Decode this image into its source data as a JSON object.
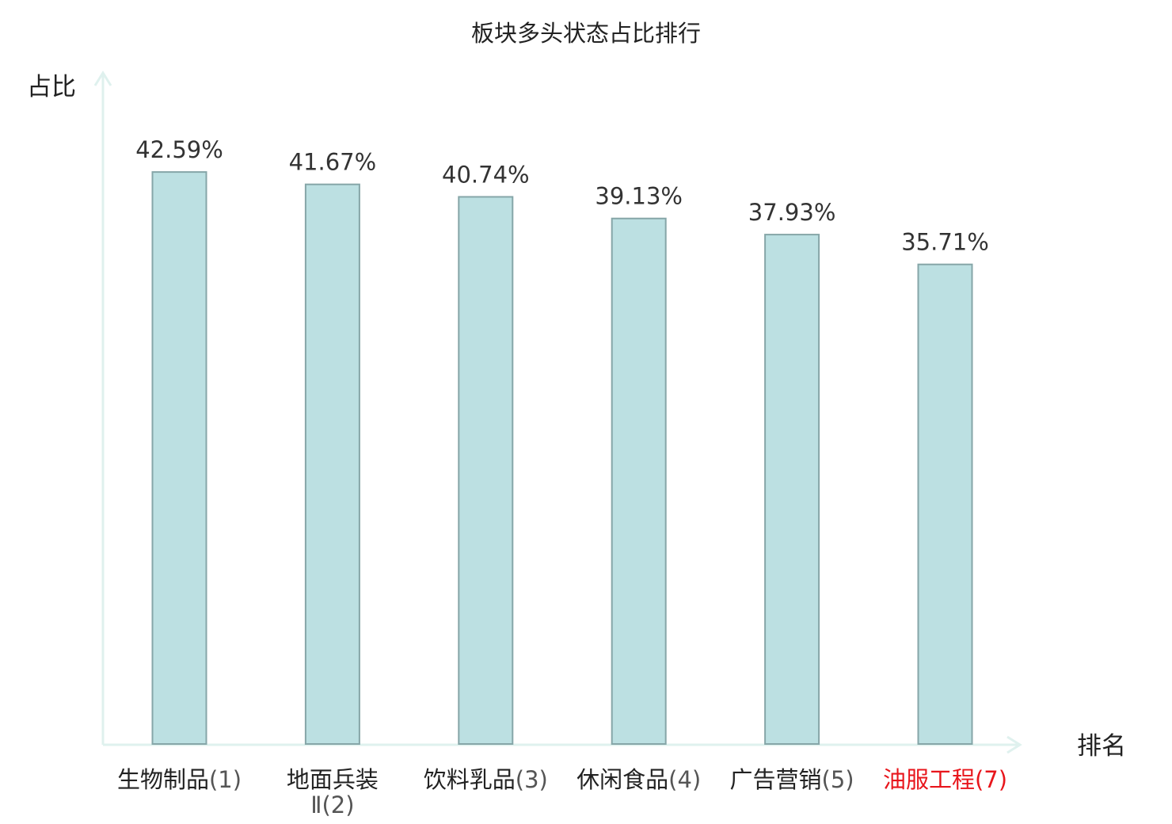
{
  "chart_data": {
    "type": "bar",
    "title": "板块多头状态占比排行",
    "xlabel": "排名",
    "ylabel": "占比",
    "categories": [
      {
        "name_lines": [
          "生物制品"
        ],
        "rank": "(1)",
        "highlight": false
      },
      {
        "name_lines": [
          "地面兵装",
          "Ⅱ"
        ],
        "rank": "(2)",
        "highlight": false
      },
      {
        "name_lines": [
          "饮料乳品"
        ],
        "rank": "(3)",
        "highlight": false
      },
      {
        "name_lines": [
          "休闲食品"
        ],
        "rank": "(4)",
        "highlight": false
      },
      {
        "name_lines": [
          "广告营销"
        ],
        "rank": "(5)",
        "highlight": false
      },
      {
        "name_lines": [
          "油服工程"
        ],
        "rank": "(7)",
        "highlight": true
      }
    ],
    "values": [
      42.59,
      41.67,
      40.74,
      39.13,
      37.93,
      35.71
    ],
    "value_labels": [
      "42.59%",
      "41.67%",
      "40.74%",
      "39.13%",
      "37.93%",
      "35.71%"
    ],
    "ylim": [
      0,
      50
    ],
    "grid": false,
    "colors": {
      "bar_fill": "#bce0e2",
      "bar_stroke": "#86a6a8",
      "axis": "#dff1ee",
      "highlight": "#e8161c"
    }
  }
}
